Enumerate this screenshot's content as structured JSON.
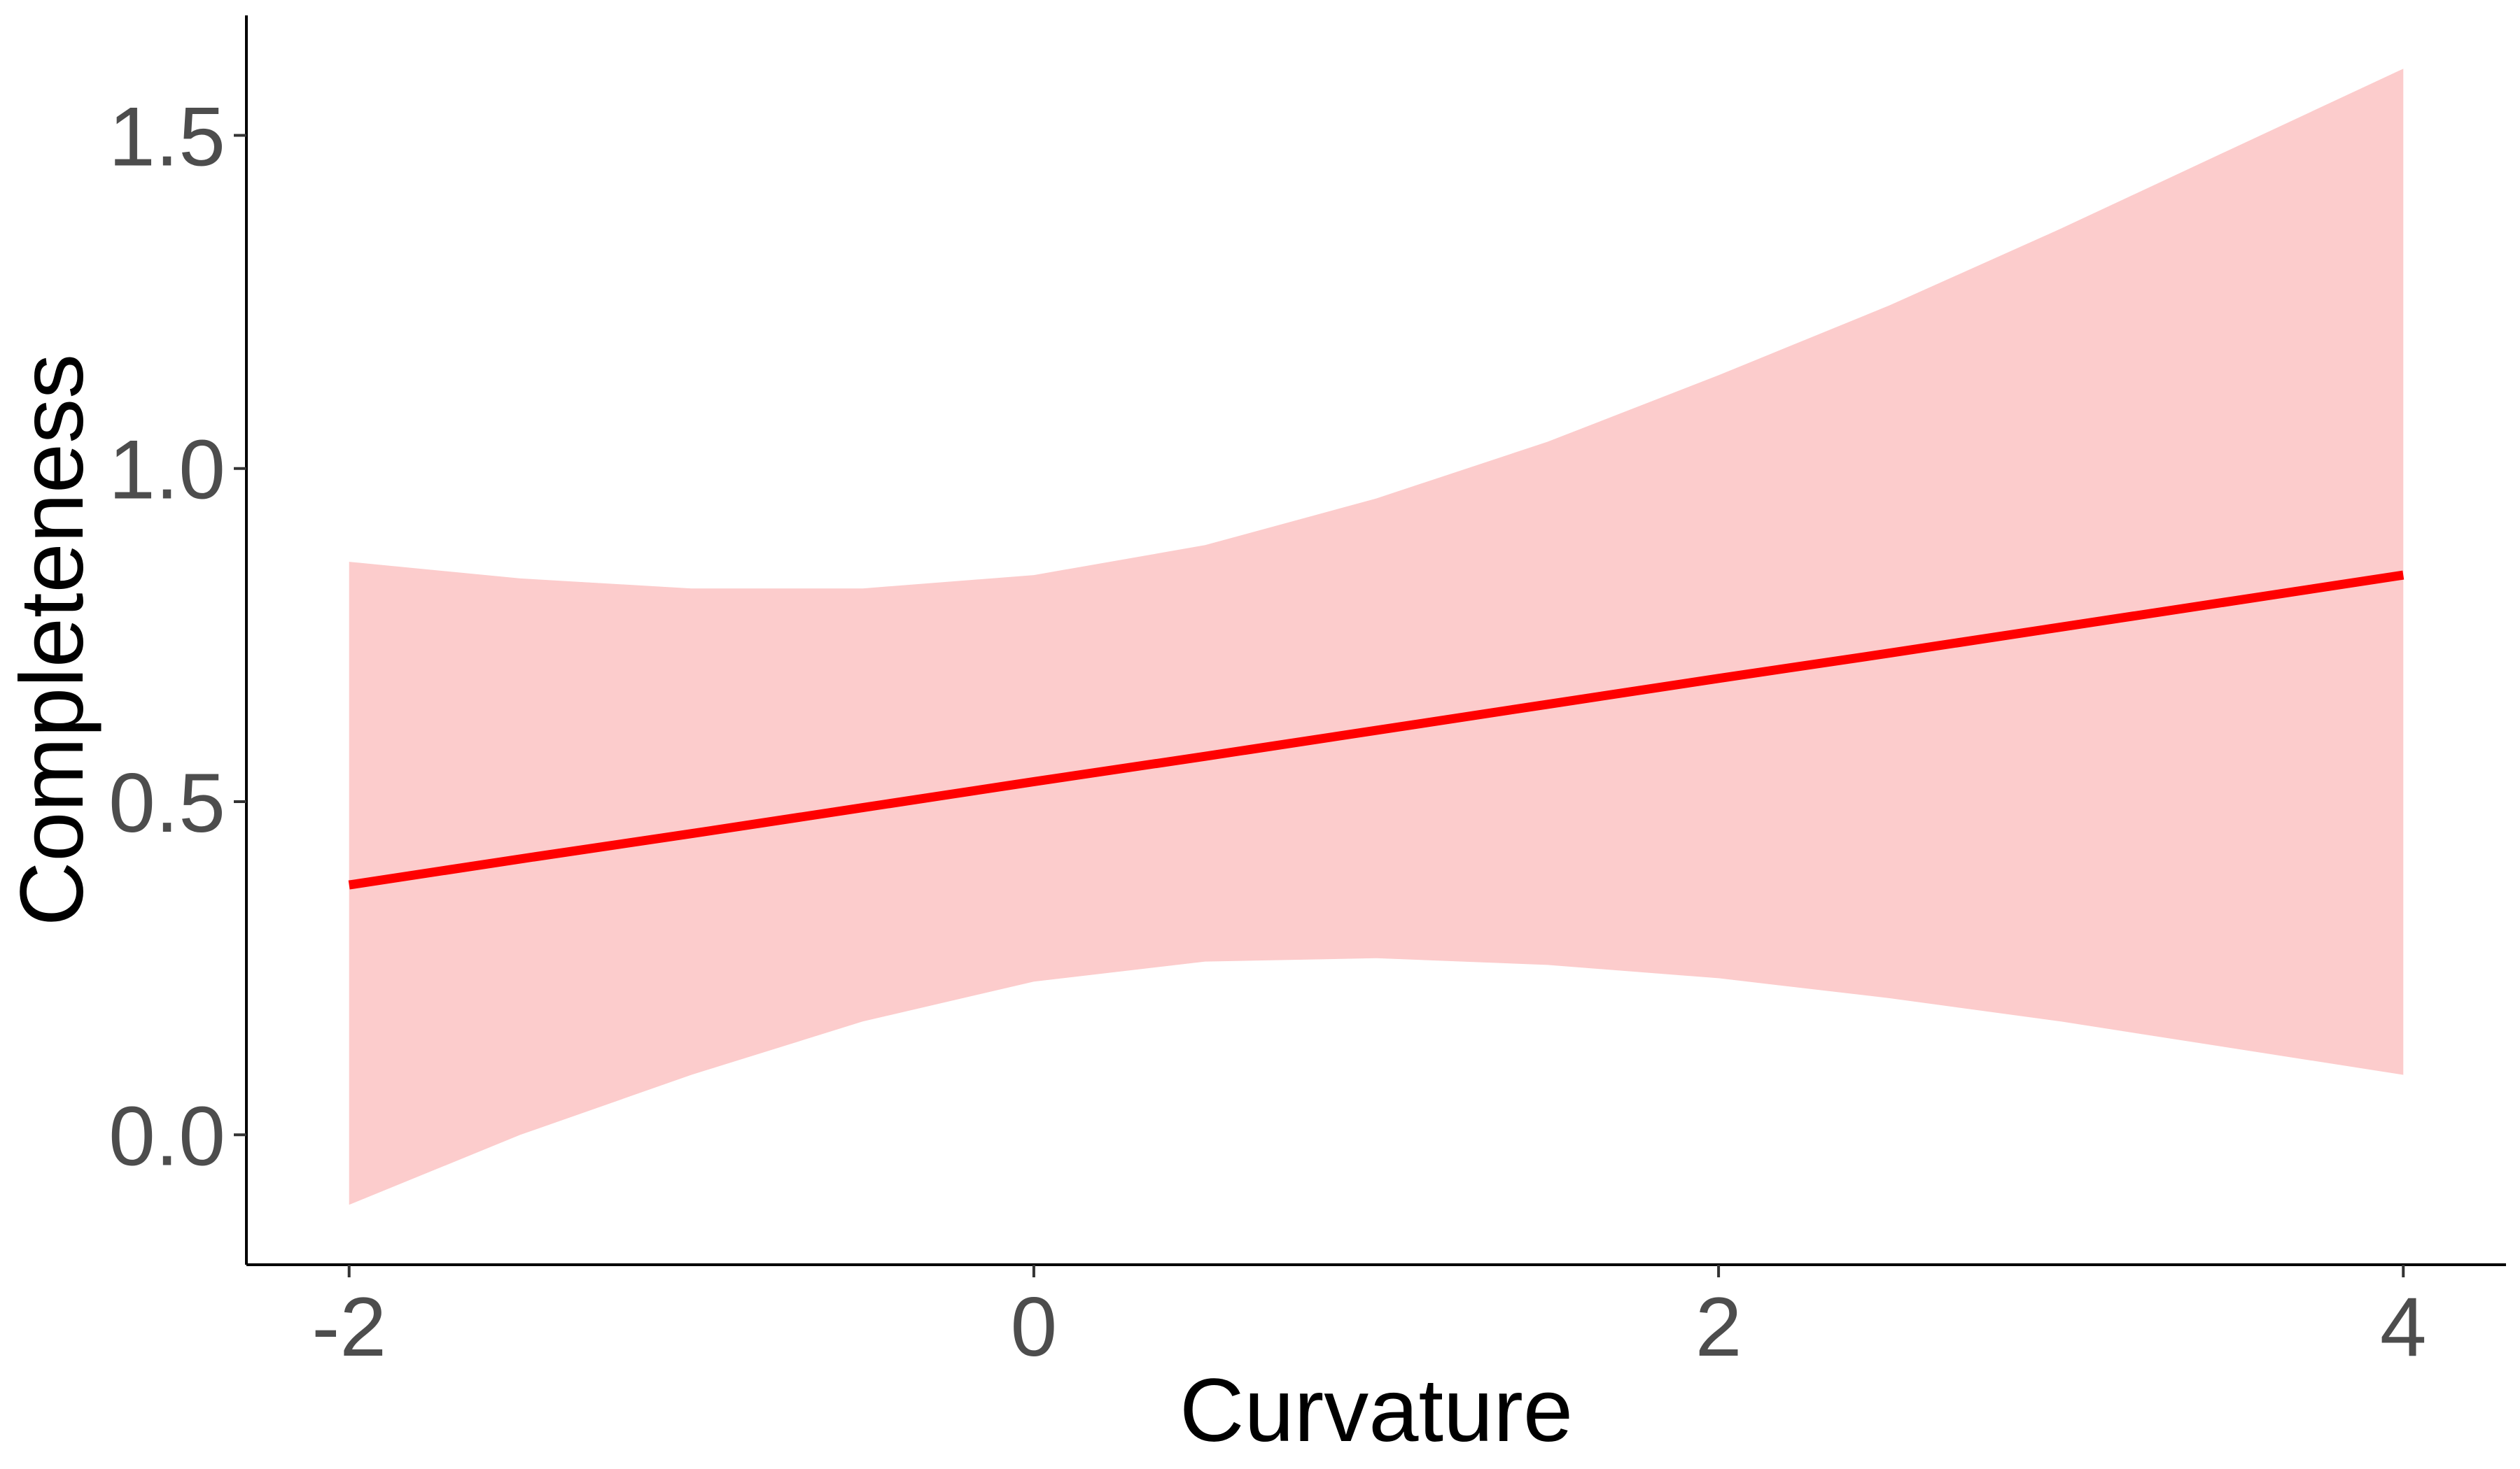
{
  "chart_data": {
    "type": "line",
    "title": "",
    "xlabel": "Curvature",
    "ylabel": "Completeness",
    "xlim": [
      -2.3,
      4.3
    ],
    "ylim": [
      -0.195,
      1.68
    ],
    "x_ticks": [
      -2,
      0,
      2,
      4
    ],
    "x_tick_labels": [
      "-2",
      "0",
      "2",
      "4"
    ],
    "y_ticks": [
      0.0,
      0.5,
      1.0,
      1.5
    ],
    "y_tick_labels": [
      "0.0",
      "0.5",
      "1.0",
      "1.5"
    ],
    "grid": false,
    "legend": "none",
    "series": [
      {
        "line_color": "#ff0000",
        "band_color": "#fccccc",
        "x": [
          -2,
          -1.5,
          -1,
          -0.5,
          0,
          0.5,
          1,
          1.5,
          2,
          2.5,
          3,
          3.5,
          4
        ],
        "fit": [
          0.375,
          0.414,
          0.452,
          0.491,
          0.53,
          0.568,
          0.607,
          0.646,
          0.685,
          0.723,
          0.762,
          0.801,
          0.84
        ],
        "lower": [
          -0.105,
          0.0,
          0.09,
          0.17,
          0.23,
          0.26,
          0.265,
          0.255,
          0.235,
          0.205,
          0.17,
          0.13,
          0.09
        ],
        "upper": [
          0.86,
          0.835,
          0.82,
          0.82,
          0.84,
          0.885,
          0.955,
          1.04,
          1.14,
          1.245,
          1.36,
          1.48,
          1.6
        ]
      }
    ]
  }
}
